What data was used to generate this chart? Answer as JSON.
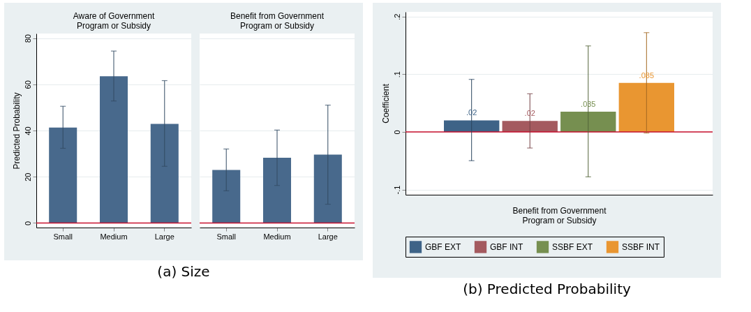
{
  "chart_data": [
    {
      "type": "bar",
      "title": "Aware of Government\nProgram or Subsidy",
      "ylabel": "Predicted Probability",
      "categories": [
        "Small",
        "Medium",
        "Large"
      ],
      "values": [
        41.3,
        63.5,
        42.9
      ],
      "errors": [
        [
          32.3,
          50.5
        ],
        [
          52.8,
          74.4
        ],
        [
          24.5,
          61.6
        ]
      ],
      "color": "#48698c",
      "ylim": [
        -2,
        82
      ],
      "yticks": [
        0,
        20,
        40,
        60,
        80
      ],
      "grid": "y",
      "ref_lines": [
        {
          "axis": "y",
          "value": 0,
          "color": "#c8102e"
        }
      ],
      "annotations": [
        "(a) Size"
      ]
    },
    {
      "type": "bar",
      "title": "Benefit from Government\nProgram or Subsidy",
      "categories": [
        "Small",
        "Medium",
        "Large"
      ],
      "values": [
        22.9,
        28.2,
        29.6
      ],
      "errors": [
        [
          13.9,
          32.0
        ],
        [
          16.2,
          40.2
        ],
        [
          8.1,
          51.0
        ]
      ],
      "color": "#48698c",
      "ylim": [
        -2,
        82
      ],
      "yticks": [
        0,
        20,
        40,
        60,
        80
      ],
      "grid": "y",
      "tick_labels": "x",
      "ref_lines": [
        {
          "axis": "y",
          "value": 0,
          "color": "#c8102e"
        }
      ]
    },
    {
      "type": "bar",
      "xlabel": "Benefit from Government\nProgram or Subsidy",
      "ylabel": "Coefficient",
      "categories": [
        null
      ],
      "series": [
        {
          "name": "GBF EXT",
          "color": "#3e6387",
          "values": [
            0.02
          ],
          "errors": [
            [
              -0.05,
              0.091
            ]
          ],
          "value_labels": [
            ".02"
          ]
        },
        {
          "name": "GBF INT",
          "color": "#a45a5f",
          "values": [
            0.019
          ],
          "errors": [
            [
              -0.028,
              0.066
            ]
          ],
          "value_labels": [
            ".02"
          ]
        },
        {
          "name": "SSBF EXT",
          "color": "#768f50",
          "values": [
            0.035
          ],
          "errors": [
            [
              -0.078,
              0.149
            ]
          ],
          "value_labels": [
            ".035"
          ]
        },
        {
          "name": "SSBF INT",
          "color": "#e99631",
          "values": [
            0.085
          ],
          "errors": [
            [
              -0.002,
              0.172
            ]
          ],
          "value_labels": [
            ".085"
          ]
        }
      ],
      "ylim": [
        -0.109,
        0.208
      ],
      "yticks": [
        {
          "value": -0.1,
          "label": "-.1"
        },
        0,
        {
          "value": 0.1,
          "label": ".1"
        },
        {
          "value": 0.2,
          "label": ".2"
        }
      ],
      "grid": "y",
      "legend": "bottom",
      "ref_lines": [
        {
          "axis": "y",
          "value": 0,
          "color": "#c8102e"
        }
      ],
      "annotations": [
        "(b) Predicted Probability"
      ]
    }
  ]
}
